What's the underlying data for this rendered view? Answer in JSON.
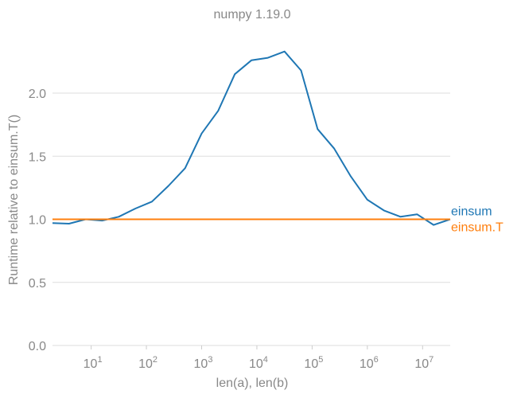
{
  "chart_data": {
    "type": "line",
    "title": "numpy 1.19.0",
    "xlabel": "len(a), len(b)",
    "ylabel": "Runtime relative to einsum.T()",
    "xscale": "log",
    "xlim_exp": [
      0.3,
      7.5
    ],
    "ylim": [
      0,
      2.5
    ],
    "yticks": [
      "0.0",
      "0.5",
      "1.0",
      "1.5",
      "2.0"
    ],
    "xticks": [
      {
        "base": "10",
        "exp": "1",
        "value": 1
      },
      {
        "base": "10",
        "exp": "2",
        "value": 2
      },
      {
        "base": "10",
        "exp": "3",
        "value": 3
      },
      {
        "base": "10",
        "exp": "4",
        "value": 4
      },
      {
        "base": "10",
        "exp": "5",
        "value": 5
      },
      {
        "base": "10",
        "exp": "6",
        "value": 6
      },
      {
        "base": "10",
        "exp": "7",
        "value": 7
      }
    ],
    "grid": true,
    "series": [
      {
        "name": "einsum",
        "color": "#1f77b4",
        "x_exp": [
          0.3,
          0.6,
          0.9,
          1.2,
          1.5,
          1.8,
          2.1,
          2.4,
          2.7,
          3.0,
          3.3,
          3.6,
          3.9,
          4.2,
          4.5,
          4.8,
          5.1,
          5.4,
          5.7,
          6.0,
          6.3,
          6.6,
          6.9,
          7.2,
          7.5
        ],
        "values": [
          0.97,
          0.965,
          1.0,
          0.99,
          1.02,
          1.085,
          1.14,
          1.265,
          1.405,
          1.68,
          1.86,
          2.15,
          2.26,
          2.28,
          2.33,
          2.18,
          1.715,
          1.56,
          1.34,
          1.155,
          1.07,
          1.02,
          1.04,
          0.955,
          1.0
        ]
      },
      {
        "name": "einsum.T",
        "color": "#ff7f0e",
        "x_exp": [
          0.3,
          7.5
        ],
        "values": [
          1.0,
          1.0
        ]
      }
    ]
  }
}
